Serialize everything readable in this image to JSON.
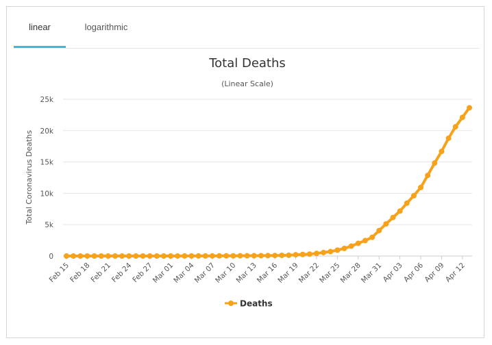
{
  "tabs": [
    {
      "label": "linear",
      "active": true
    },
    {
      "label": "logarithmic",
      "active": false
    }
  ],
  "colors": {
    "series": "#f7a21b",
    "tab_accent": "#3fb8dc",
    "grid": "#e6e6e6"
  },
  "chart_data": {
    "type": "line",
    "title": "Total Deaths",
    "subtitle": "(Linear Scale)",
    "xlabel": "",
    "ylabel": "Total Coronavirus Deaths",
    "ylim": [
      0,
      25000
    ],
    "yticks": [
      0,
      5000,
      10000,
      15000,
      20000,
      25000
    ],
    "ytick_labels": [
      "0",
      "5k",
      "10k",
      "15k",
      "20k",
      "25k"
    ],
    "grid": true,
    "legend": "bottom-center",
    "x": [
      "Feb 15",
      "Feb 16",
      "Feb 17",
      "Feb 18",
      "Feb 19",
      "Feb 20",
      "Feb 21",
      "Feb 22",
      "Feb 23",
      "Feb 24",
      "Feb 25",
      "Feb 26",
      "Feb 27",
      "Feb 28",
      "Feb 29",
      "Mar 01",
      "Mar 02",
      "Mar 03",
      "Mar 04",
      "Mar 05",
      "Mar 06",
      "Mar 07",
      "Mar 08",
      "Mar 09",
      "Mar 10",
      "Mar 11",
      "Mar 12",
      "Mar 13",
      "Mar 14",
      "Mar 15",
      "Mar 16",
      "Mar 17",
      "Mar 18",
      "Mar 19",
      "Mar 20",
      "Mar 21",
      "Mar 22",
      "Mar 23",
      "Mar 24",
      "Mar 25",
      "Mar 26",
      "Mar 27",
      "Mar 28",
      "Mar 29",
      "Mar 30",
      "Mar 31",
      "Apr 01",
      "Apr 02",
      "Apr 03",
      "Apr 04",
      "Apr 05",
      "Apr 06",
      "Apr 07",
      "Apr 08",
      "Apr 09",
      "Apr 10",
      "Apr 11",
      "Apr 12",
      "Apr 13"
    ],
    "x_tick_labels": [
      "Feb 15",
      "Feb 18",
      "Feb 21",
      "Feb 24",
      "Feb 27",
      "Mar 01",
      "Mar 04",
      "Mar 07",
      "Mar 10",
      "Mar 13",
      "Mar 16",
      "Mar 19",
      "Mar 22",
      "Mar 25",
      "Mar 28",
      "Mar 31",
      "Apr 03",
      "Apr 06",
      "Apr 09",
      "Apr 12"
    ],
    "series": [
      {
        "name": "Deaths",
        "values": [
          0,
          0,
          0,
          0,
          0,
          0,
          0,
          0,
          0,
          0,
          0,
          0,
          0,
          1,
          1,
          1,
          6,
          9,
          11,
          12,
          15,
          19,
          22,
          26,
          30,
          38,
          41,
          48,
          57,
          68,
          85,
          108,
          118,
          200,
          244,
          307,
          417,
          557,
          706,
          942,
          1209,
          1581,
          2026,
          2467,
          2978,
          4058,
          5116,
          6143,
          7162,
          8430,
          9620,
          10930,
          12860,
          14830,
          16690,
          18780,
          20610,
          22110,
          23640
        ]
      }
    ]
  }
}
